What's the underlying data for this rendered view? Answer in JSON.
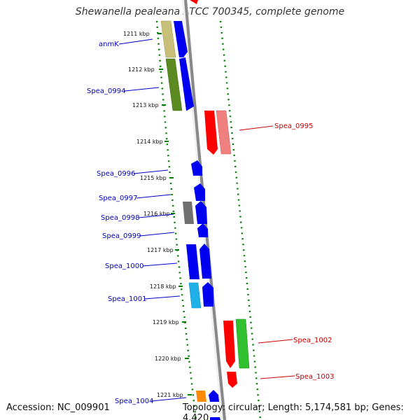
{
  "title": "Shewanella pealeana ATCC 700345, complete genome",
  "accession": "Accession: NC_009901",
  "topology": "Topology: circular; Length: 5,174,581 bp; Genes: 4,420",
  "ticks": [
    "1211 kbp",
    "1212 kbp",
    "1213 kbp",
    "1214 kbp",
    "1215 kbp",
    "1216 kbp",
    "1217 kbp",
    "1218 kbp",
    "1219 kbp",
    "1220 kbp",
    "1221 kbp"
  ],
  "labels": {
    "anmK": "anmK",
    "Spea_0994": "Spea_0994",
    "Spea_0995": "Spea_0995",
    "Spea_0996": "Spea_0996",
    "Spea_0997": "Spea_0997",
    "Spea_0998": "Spea_0998",
    "Spea_0999": "Spea_0999",
    "Spea_1000": "Spea_1000",
    "Spea_1001": "Spea_1001",
    "Spea_1002": "Spea_1002",
    "Spea_1003": "Spea_1003",
    "Spea_1004": "Spea_1004"
  },
  "colors": {
    "forward_label": "#0000c8",
    "reverse_label": "#c80000",
    "backbone": "#808080",
    "guide_dots": "#008000"
  }
}
